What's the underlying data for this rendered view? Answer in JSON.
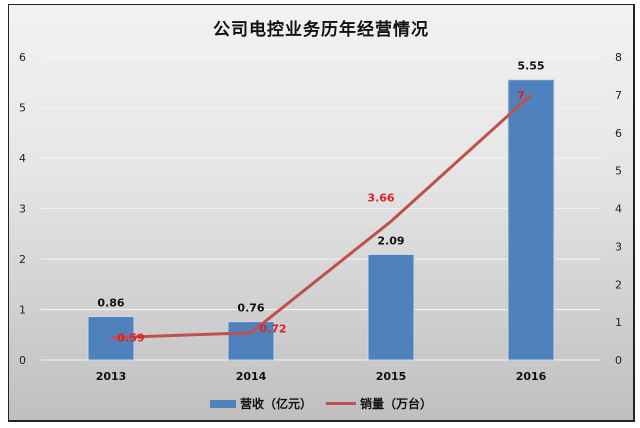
{
  "chart_data": {
    "type": "bar+line",
    "title": "公司电控业务历年经营情况",
    "categories": [
      "2013",
      "2014",
      "2015",
      "2016"
    ],
    "series": [
      {
        "name": "营收（亿元）",
        "type": "bar",
        "axis": "left",
        "color": "#4f81bd",
        "values": [
          0.86,
          0.76,
          2.09,
          5.55
        ],
        "labels": [
          "0.86",
          "0.76",
          "2.09",
          "5.55"
        ]
      },
      {
        "name": "销量（万台）",
        "type": "line",
        "axis": "right",
        "color": "#c0504d",
        "values": [
          0.59,
          0.72,
          3.66,
          7
        ],
        "labels": [
          "0.59",
          "0.72",
          "3.66",
          "7"
        ]
      }
    ],
    "y_left": {
      "min": 0,
      "max": 6,
      "ticks": [
        "0",
        "1",
        "2",
        "3",
        "4",
        "5",
        "6"
      ]
    },
    "y_right": {
      "min": 0,
      "max": 8,
      "ticks": [
        "0",
        "1",
        "2",
        "3",
        "4",
        "5",
        "6",
        "7",
        "8"
      ]
    },
    "grid": true,
    "legend_position": "bottom"
  },
  "legend": {
    "bar_label": "营收（亿元）",
    "line_label": "销量（万台）"
  },
  "colors": {
    "bar": "#4f81bd",
    "line": "#c0504d",
    "line_label": "#e02020"
  }
}
